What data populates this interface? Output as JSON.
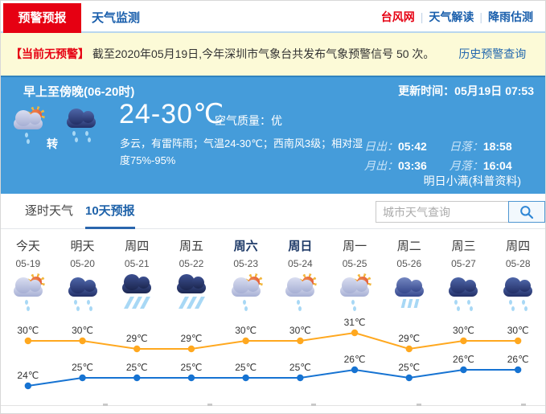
{
  "nav": {
    "tab_active": "预警预报",
    "tab_monitor": "天气监测",
    "separator": "|",
    "links": [
      "台风网",
      "天气解读",
      "降雨估测"
    ]
  },
  "notice": {
    "badge": "【当前无预警】",
    "text": "截至2020年05月19日,今年深圳市气象台共发布气象预警信号 50 次。",
    "link": "历史预警查询"
  },
  "current": {
    "period": "早上至傍晚(06-20时)",
    "update_time": "更新时间：05月19日 07:53",
    "icon_from": "sun-rain",
    "icon_to": "drizzle",
    "transition": "转",
    "temp_range": "24-30℃",
    "air_quality": "空气质量：优",
    "description": "多云，有雷阵雨；气温24-30℃；西南风3级；相对湿度75%-95%",
    "sunrise_label": "日出：",
    "sunrise": "05:42",
    "sunset_label": "日落：",
    "sunset": "18:58",
    "moonrise_label": "月出：",
    "moonrise": "03:36",
    "moonset_label": "月落：",
    "moonset": "16:04",
    "almanac": "明日小满(科普资料)"
  },
  "tabs": {
    "hourly": "逐时天气",
    "ten_day": "10天预报"
  },
  "search": {
    "placeholder": "城市天气查询",
    "icon": "search-icon"
  },
  "forecast": {
    "days": [
      {
        "label": "今天",
        "date": "05-19",
        "icon": "sun-rain",
        "high": 30,
        "low": 24,
        "weekend": false
      },
      {
        "label": "明天",
        "date": "05-20",
        "icon": "drizzle",
        "high": 30,
        "low": 25,
        "weekend": false
      },
      {
        "label": "周四",
        "date": "05-21",
        "icon": "rain-heavy",
        "high": 29,
        "low": 25,
        "weekend": false
      },
      {
        "label": "周五",
        "date": "05-22",
        "icon": "rain-heavy",
        "high": 29,
        "low": 25,
        "weekend": false
      },
      {
        "label": "周六",
        "date": "05-23",
        "icon": "sun-rain",
        "high": 30,
        "low": 25,
        "weekend": true
      },
      {
        "label": "周日",
        "date": "05-24",
        "icon": "sun-rain",
        "high": 30,
        "low": 25,
        "weekend": true
      },
      {
        "label": "周一",
        "date": "05-25",
        "icon": "sun-rain",
        "high": 31,
        "low": 26,
        "weekend": false
      },
      {
        "label": "周二",
        "date": "05-26",
        "icon": "rain-mid",
        "high": 29,
        "low": 25,
        "weekend": false
      },
      {
        "label": "周三",
        "date": "05-27",
        "icon": "drizzle",
        "high": 30,
        "low": 26,
        "weekend": false
      },
      {
        "label": "周四",
        "date": "05-28",
        "icon": "drizzle",
        "high": 30,
        "low": 26,
        "weekend": false
      }
    ]
  },
  "chart_data": {
    "type": "line",
    "categories": [
      "05-19",
      "05-20",
      "05-21",
      "05-22",
      "05-23",
      "05-24",
      "05-25",
      "05-26",
      "05-27",
      "05-28"
    ],
    "series": [
      {
        "name": "high",
        "color": "#FFA81F",
        "values": [
          30,
          30,
          29,
          29,
          30,
          30,
          31,
          29,
          30,
          30
        ]
      },
      {
        "name": "low",
        "color": "#1673D2",
        "values": [
          24,
          25,
          25,
          25,
          25,
          25,
          26,
          25,
          26,
          26
        ]
      }
    ],
    "unit": "℃",
    "point_labels": true,
    "grid": false,
    "legend": "none"
  },
  "colors": {
    "accent_red": "#E60012",
    "link_blue": "#1A5FAC",
    "panel_blue": "#459CDA",
    "notice_yellow": "#FCFAD7",
    "high_line": "#FFA81F",
    "low_line": "#1673D2"
  }
}
